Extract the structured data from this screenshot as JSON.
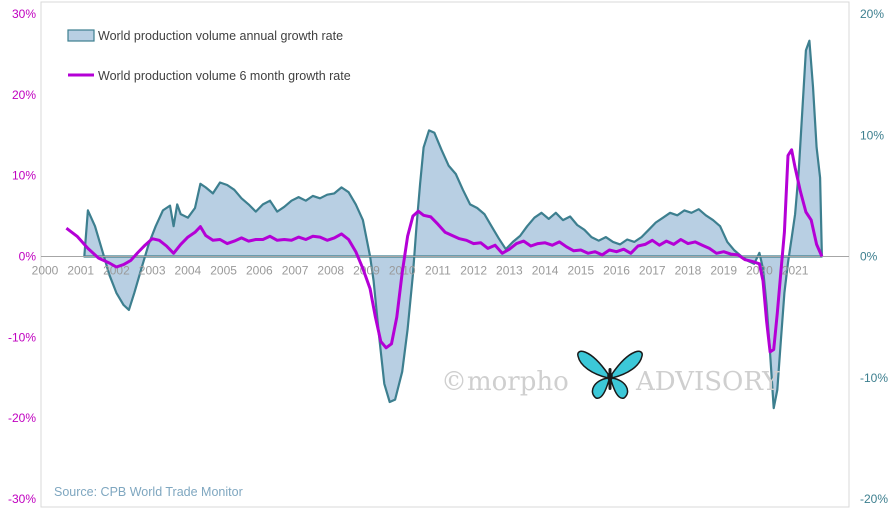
{
  "chart_data": {
    "type": "line",
    "series": [
      {
        "name": "World production volume annual growth rate",
        "style": "area",
        "axis": "right",
        "color": "#3d7f8f",
        "fill": "#b8cfe3",
        "points": [
          [
            2001.1,
            0
          ],
          [
            2001.2,
            3.8
          ],
          [
            2001.4,
            2.5
          ],
          [
            2001.6,
            0.5
          ],
          [
            2001.8,
            -1.5
          ],
          [
            2002.0,
            -3.0
          ],
          [
            2002.2,
            -4.0
          ],
          [
            2002.35,
            -4.4
          ],
          [
            2002.5,
            -3.0
          ],
          [
            2002.7,
            -1.0
          ],
          [
            2002.9,
            1.0
          ],
          [
            2003.1,
            2.5
          ],
          [
            2003.3,
            3.8
          ],
          [
            2003.5,
            4.2
          ],
          [
            2003.6,
            2.5
          ],
          [
            2003.7,
            4.3
          ],
          [
            2003.8,
            3.5
          ],
          [
            2004.0,
            3.2
          ],
          [
            2004.2,
            4.0
          ],
          [
            2004.35,
            6.0
          ],
          [
            2004.5,
            5.7
          ],
          [
            2004.7,
            5.2
          ],
          [
            2004.9,
            6.1
          ],
          [
            2005.1,
            5.9
          ],
          [
            2005.3,
            5.5
          ],
          [
            2005.5,
            4.8
          ],
          [
            2005.7,
            4.3
          ],
          [
            2005.9,
            3.7
          ],
          [
            2006.1,
            4.3
          ],
          [
            2006.3,
            4.6
          ],
          [
            2006.5,
            3.7
          ],
          [
            2006.7,
            4.1
          ],
          [
            2006.9,
            4.6
          ],
          [
            2007.1,
            4.9
          ],
          [
            2007.3,
            4.6
          ],
          [
            2007.5,
            5.0
          ],
          [
            2007.7,
            4.8
          ],
          [
            2007.9,
            5.1
          ],
          [
            2008.1,
            5.2
          ],
          [
            2008.3,
            5.7
          ],
          [
            2008.5,
            5.3
          ],
          [
            2008.7,
            4.3
          ],
          [
            2008.9,
            3.0
          ],
          [
            2009.1,
            0
          ],
          [
            2009.2,
            -2.0
          ],
          [
            2009.35,
            -6.5
          ],
          [
            2009.5,
            -10.5
          ],
          [
            2009.65,
            -12.0
          ],
          [
            2009.8,
            -11.8
          ],
          [
            2010.0,
            -9.5
          ],
          [
            2010.15,
            -6.0
          ],
          [
            2010.3,
            -1.5
          ],
          [
            2010.4,
            2.5
          ],
          [
            2010.5,
            6.0
          ],
          [
            2010.6,
            9.0
          ],
          [
            2010.75,
            10.4
          ],
          [
            2010.9,
            10.2
          ],
          [
            2011.1,
            8.8
          ],
          [
            2011.3,
            7.5
          ],
          [
            2011.5,
            6.8
          ],
          [
            2011.7,
            5.5
          ],
          [
            2011.9,
            4.3
          ],
          [
            2012.1,
            4.0
          ],
          [
            2012.3,
            3.5
          ],
          [
            2012.5,
            2.5
          ],
          [
            2012.7,
            1.5
          ],
          [
            2012.9,
            0.6
          ],
          [
            2013.1,
            1.2
          ],
          [
            2013.3,
            1.7
          ],
          [
            2013.5,
            2.5
          ],
          [
            2013.7,
            3.2
          ],
          [
            2013.9,
            3.6
          ],
          [
            2014.1,
            3.1
          ],
          [
            2014.3,
            3.6
          ],
          [
            2014.5,
            3.0
          ],
          [
            2014.7,
            3.3
          ],
          [
            2014.9,
            2.6
          ],
          [
            2015.1,
            2.2
          ],
          [
            2015.3,
            1.6
          ],
          [
            2015.5,
            1.3
          ],
          [
            2015.7,
            1.6
          ],
          [
            2015.9,
            1.2
          ],
          [
            2016.1,
            1.0
          ],
          [
            2016.3,
            1.4
          ],
          [
            2016.5,
            1.2
          ],
          [
            2016.7,
            1.6
          ],
          [
            2016.9,
            2.2
          ],
          [
            2017.1,
            2.8
          ],
          [
            2017.3,
            3.2
          ],
          [
            2017.5,
            3.6
          ],
          [
            2017.7,
            3.4
          ],
          [
            2017.9,
            3.8
          ],
          [
            2018.1,
            3.6
          ],
          [
            2018.3,
            3.9
          ],
          [
            2018.5,
            3.4
          ],
          [
            2018.7,
            3.0
          ],
          [
            2018.9,
            2.5
          ],
          [
            2019.1,
            1.2
          ],
          [
            2019.3,
            0.5
          ],
          [
            2019.5,
            0
          ],
          [
            2019.7,
            -0.4
          ],
          [
            2019.85,
            -0.6
          ],
          [
            2020.0,
            0.3
          ],
          [
            2020.1,
            -1.0
          ],
          [
            2020.2,
            -4.0
          ],
          [
            2020.3,
            -8.0
          ],
          [
            2020.4,
            -12.5
          ],
          [
            2020.5,
            -11.0
          ],
          [
            2020.6,
            -7.0
          ],
          [
            2020.7,
            -3.0
          ],
          [
            2020.8,
            -0.5
          ],
          [
            2020.9,
            1.5
          ],
          [
            2021.0,
            3.5
          ],
          [
            2021.1,
            7.0
          ],
          [
            2021.2,
            12.0
          ],
          [
            2021.3,
            17.0
          ],
          [
            2021.4,
            17.8
          ],
          [
            2021.5,
            14.0
          ],
          [
            2021.6,
            9.0
          ],
          [
            2021.7,
            6.5
          ],
          [
            2021.75,
            0
          ]
        ]
      },
      {
        "name": "World production volume 6 month growth rate",
        "style": "line",
        "axis": "left",
        "color": "#b400d6",
        "points": [
          [
            2000.6,
            3.5
          ],
          [
            2000.9,
            2.5
          ],
          [
            2001.2,
            1.0
          ],
          [
            2001.5,
            -0.2
          ],
          [
            2001.8,
            -0.8
          ],
          [
            2002.0,
            -1.3
          ],
          [
            2002.2,
            -1.0
          ],
          [
            2002.4,
            -0.5
          ],
          [
            2002.6,
            0.5
          ],
          [
            2002.8,
            1.4
          ],
          [
            2003.0,
            2.2
          ],
          [
            2003.2,
            2.0
          ],
          [
            2003.4,
            1.3
          ],
          [
            2003.6,
            0.4
          ],
          [
            2003.8,
            1.5
          ],
          [
            2004.0,
            2.4
          ],
          [
            2004.2,
            3.0
          ],
          [
            2004.35,
            3.7
          ],
          [
            2004.5,
            2.6
          ],
          [
            2004.7,
            2.0
          ],
          [
            2004.9,
            2.1
          ],
          [
            2005.1,
            1.6
          ],
          [
            2005.3,
            1.9
          ],
          [
            2005.5,
            2.3
          ],
          [
            2005.7,
            1.9
          ],
          [
            2005.9,
            2.1
          ],
          [
            2006.1,
            2.1
          ],
          [
            2006.3,
            2.5
          ],
          [
            2006.5,
            2.0
          ],
          [
            2006.7,
            2.1
          ],
          [
            2006.9,
            2.0
          ],
          [
            2007.1,
            2.4
          ],
          [
            2007.3,
            2.1
          ],
          [
            2007.5,
            2.5
          ],
          [
            2007.7,
            2.4
          ],
          [
            2007.9,
            2.0
          ],
          [
            2008.1,
            2.3
          ],
          [
            2008.3,
            2.8
          ],
          [
            2008.5,
            2.1
          ],
          [
            2008.7,
            0.6
          ],
          [
            2008.9,
            -1.5
          ],
          [
            2009.1,
            -4.0
          ],
          [
            2009.25,
            -7.5
          ],
          [
            2009.4,
            -10.5
          ],
          [
            2009.55,
            -11.3
          ],
          [
            2009.7,
            -10.8
          ],
          [
            2009.85,
            -7.5
          ],
          [
            2010.0,
            -2.0
          ],
          [
            2010.15,
            2.5
          ],
          [
            2010.3,
            5.0
          ],
          [
            2010.45,
            5.6
          ],
          [
            2010.6,
            5.1
          ],
          [
            2010.8,
            4.9
          ],
          [
            2011.0,
            4.0
          ],
          [
            2011.2,
            3.0
          ],
          [
            2011.4,
            2.6
          ],
          [
            2011.6,
            2.2
          ],
          [
            2011.8,
            2.0
          ],
          [
            2012.0,
            1.6
          ],
          [
            2012.2,
            1.7
          ],
          [
            2012.4,
            1.0
          ],
          [
            2012.6,
            1.4
          ],
          [
            2012.8,
            0.4
          ],
          [
            2013.0,
            0.9
          ],
          [
            2013.2,
            1.6
          ],
          [
            2013.4,
            1.9
          ],
          [
            2013.6,
            1.3
          ],
          [
            2013.8,
            1.6
          ],
          [
            2014.0,
            1.7
          ],
          [
            2014.2,
            1.4
          ],
          [
            2014.4,
            1.8
          ],
          [
            2014.6,
            1.2
          ],
          [
            2014.8,
            0.7
          ],
          [
            2015.0,
            0.8
          ],
          [
            2015.2,
            0.4
          ],
          [
            2015.4,
            0.6
          ],
          [
            2015.6,
            0.2
          ],
          [
            2015.8,
            0.8
          ],
          [
            2016.0,
            0.6
          ],
          [
            2016.2,
            0.9
          ],
          [
            2016.4,
            0.4
          ],
          [
            2016.6,
            1.3
          ],
          [
            2016.8,
            1.5
          ],
          [
            2017.0,
            2.0
          ],
          [
            2017.2,
            1.4
          ],
          [
            2017.4,
            1.9
          ],
          [
            2017.6,
            1.5
          ],
          [
            2017.8,
            2.1
          ],
          [
            2018.0,
            1.6
          ],
          [
            2018.2,
            1.8
          ],
          [
            2018.4,
            1.4
          ],
          [
            2018.6,
            1.0
          ],
          [
            2018.8,
            0.4
          ],
          [
            2019.0,
            0.6
          ],
          [
            2019.2,
            0.3
          ],
          [
            2019.4,
            0.2
          ],
          [
            2019.6,
            -0.4
          ],
          [
            2019.8,
            -0.6
          ],
          [
            2020.0,
            -0.9
          ],
          [
            2020.1,
            -3.0
          ],
          [
            2020.2,
            -8.0
          ],
          [
            2020.3,
            -11.8
          ],
          [
            2020.4,
            -11.5
          ],
          [
            2020.5,
            -7.0
          ],
          [
            2020.6,
            -2.0
          ],
          [
            2020.7,
            3.0
          ],
          [
            2020.8,
            12.5
          ],
          [
            2020.9,
            13.2
          ],
          [
            2021.0,
            11.0
          ],
          [
            2021.15,
            8.0
          ],
          [
            2021.3,
            5.5
          ],
          [
            2021.45,
            4.5
          ],
          [
            2021.6,
            1.5
          ],
          [
            2021.75,
            0
          ]
        ]
      }
    ],
    "x_ticks": [
      "2000",
      "2001",
      "2002",
      "2003",
      "2004",
      "2005",
      "2006",
      "2007",
      "2008",
      "2009",
      "2010",
      "2011",
      "2012",
      "2013",
      "2014",
      "2015",
      "2016",
      "2017",
      "2018",
      "2019",
      "2020",
      "2021"
    ],
    "xlim": [
      2000,
      2022.2
    ],
    "y_left": {
      "lim": [
        -30,
        30
      ],
      "ticks": [
        "-30%",
        "-20%",
        "-10%",
        "0%",
        "10%",
        "20%",
        "30%"
      ],
      "color": "#c000c0"
    },
    "y_right": {
      "lim": [
        -20,
        20
      ],
      "ticks": [
        "-20%",
        "-10%",
        "0%",
        "10%",
        "20%"
      ],
      "color": "#3d7f8f"
    },
    "legend_position": "top-left",
    "grid": false,
    "source": "Source: CPB World Trade Monitor",
    "watermark": {
      "prefix": "©morpho",
      "suffix": "ADVISORY",
      "logo": "butterfly-icon",
      "colors": [
        "#3cc8d8",
        "#1a1a1a"
      ]
    }
  }
}
